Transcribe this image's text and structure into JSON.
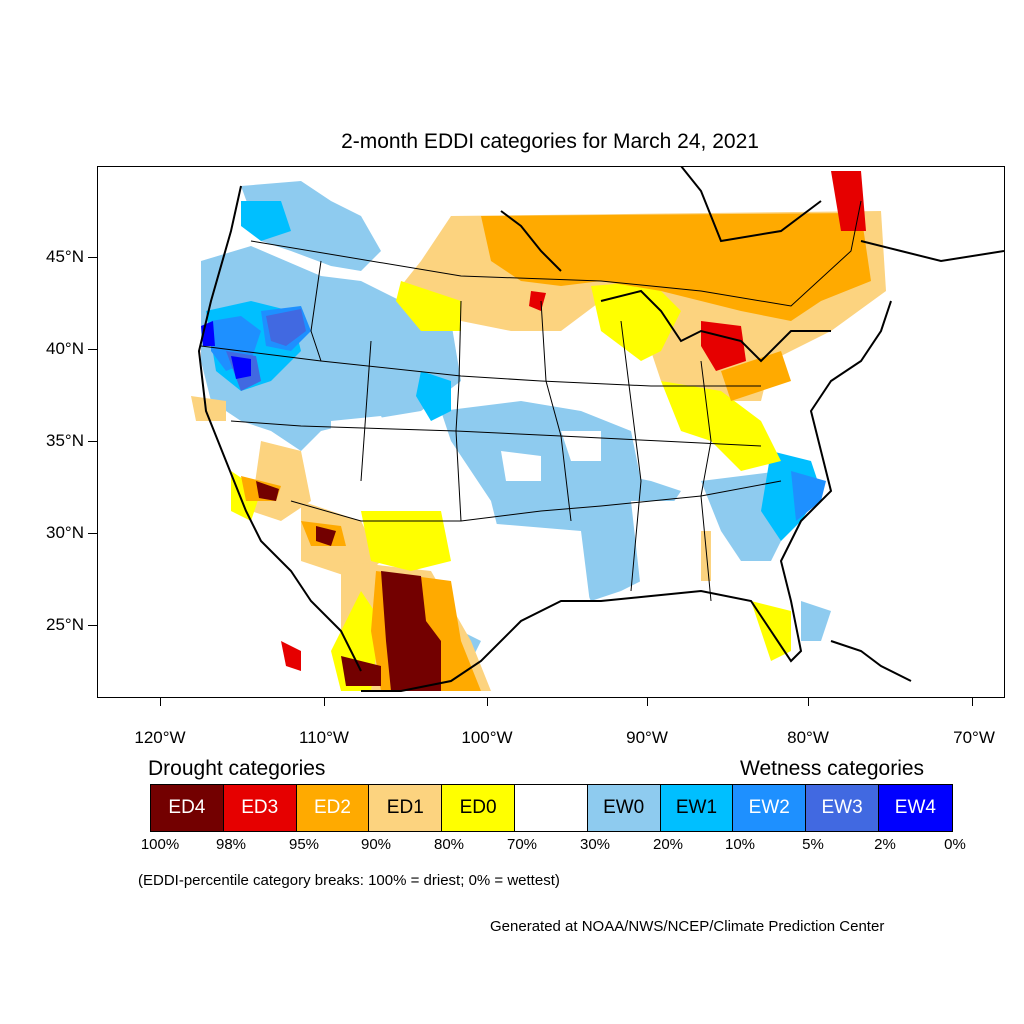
{
  "title": "2-month EDDI categories for March 24, 2021",
  "map": {
    "lat_labels": [
      "45°N",
      "40°N",
      "35°N",
      "30°N",
      "25°N"
    ],
    "lon_labels": [
      "120°W",
      "110°W",
      "100°W",
      "90°W",
      "80°W",
      "70°W"
    ]
  },
  "legend": {
    "drought_heading": "Drought categories",
    "wetness_heading": "Wetness categories",
    "categories": [
      {
        "label": "ED4",
        "color": "#730000",
        "text_color": "#ffffff"
      },
      {
        "label": "ED3",
        "color": "#e60000",
        "text_color": "#ffffff"
      },
      {
        "label": "ED2",
        "color": "#ffaa00",
        "text_color": "#ffffff"
      },
      {
        "label": "ED1",
        "color": "#fcd37f",
        "text_color": "#000000"
      },
      {
        "label": "ED0",
        "color": "#ffff00",
        "text_color": "#000000"
      },
      {
        "label": "",
        "color": "#ffffff",
        "text_color": "#000000"
      },
      {
        "label": "EW0",
        "color": "#8ecbef",
        "text_color": "#000000"
      },
      {
        "label": "EW1",
        "color": "#00bfff",
        "text_color": "#000000"
      },
      {
        "label": "EW2",
        "color": "#1e90ff",
        "text_color": "#ffffff"
      },
      {
        "label": "EW3",
        "color": "#4169e1",
        "text_color": "#ffffff"
      },
      {
        "label": "EW4",
        "color": "#0000ff",
        "text_color": "#ffffff"
      }
    ],
    "breaks": [
      "100%",
      "98%",
      "95%",
      "90%",
      "80%",
      "70%",
      "30%",
      "20%",
      "10%",
      "5%",
      "2%",
      "0%"
    ]
  },
  "note": "(EDDI-percentile category breaks: 100% = driest; 0% = wettest)",
  "credit": "Generated at NOAA/NWS/NCEP/Climate Prediction Center"
}
